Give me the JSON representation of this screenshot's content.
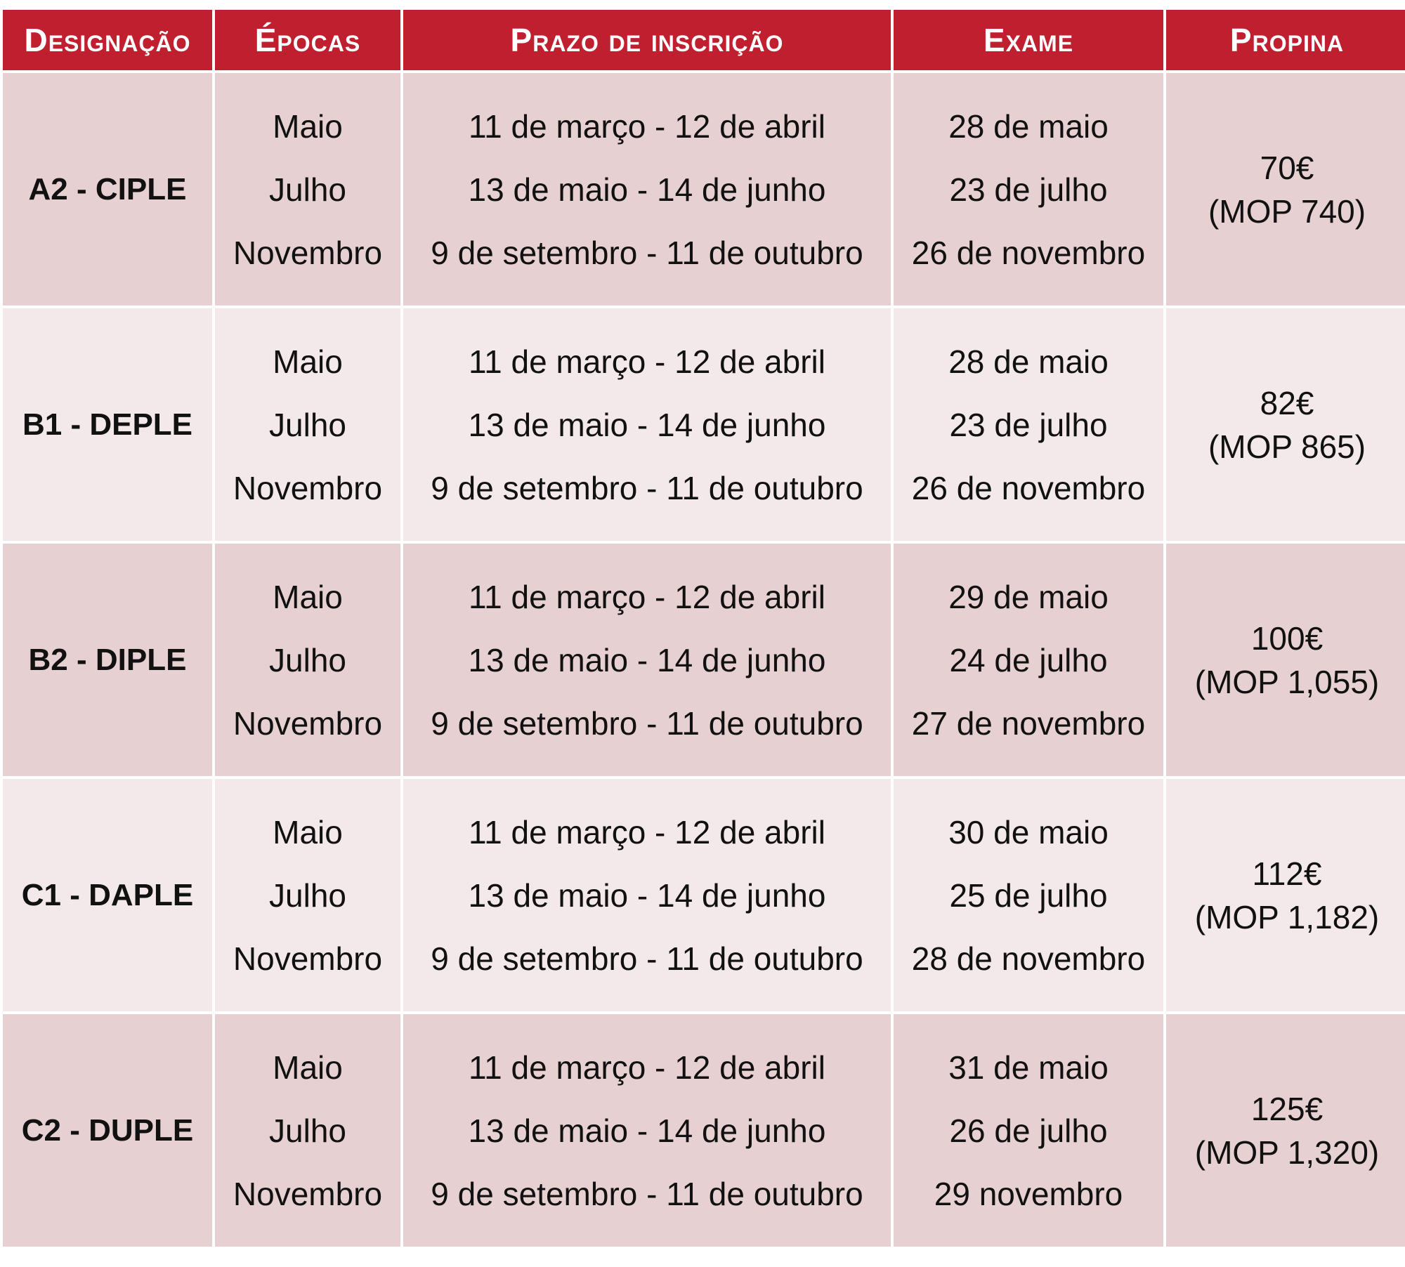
{
  "headers": {
    "designacao": "Designação",
    "epocas": "Épocas",
    "prazo": "Prazo de inscrição",
    "exame": "Exame",
    "propina": "Propina"
  },
  "rows": [
    {
      "designation": "A2 - CIPLE",
      "epocas": [
        "Maio",
        "Julho",
        "Novembro"
      ],
      "prazo": [
        "11 de março - 12 de abril",
        "13 de maio - 14 de junho",
        "9 de setembro - 11 de outubro"
      ],
      "exame": [
        "28 de maio",
        "23 de julho",
        "26 de novembro"
      ],
      "propina": "70€",
      "propina_mop": "(MOP 740)"
    },
    {
      "designation": "B1 - DEPLE",
      "epocas": [
        "Maio",
        "Julho",
        "Novembro"
      ],
      "prazo": [
        "11 de março - 12 de abril",
        "13 de maio - 14 de junho",
        "9 de setembro - 11 de outubro"
      ],
      "exame": [
        "28 de maio",
        "23 de julho",
        "26 de novembro"
      ],
      "propina": "82€",
      "propina_mop": "(MOP 865)"
    },
    {
      "designation": "B2 - DIPLE",
      "epocas": [
        "Maio",
        "Julho",
        "Novembro"
      ],
      "prazo": [
        "11 de março - 12 de abril",
        "13 de maio - 14 de junho",
        "9 de setembro - 11 de outubro"
      ],
      "exame": [
        "29 de maio",
        "24 de julho",
        "27 de novembro"
      ],
      "propina": "100€",
      "propina_mop": "(MOP 1,055)"
    },
    {
      "designation": "C1 - DAPLE",
      "epocas": [
        "Maio",
        "Julho",
        "Novembro"
      ],
      "prazo": [
        "11 de março - 12 de abril",
        "13 de maio - 14 de junho",
        "9 de setembro - 11 de outubro"
      ],
      "exame": [
        "30 de maio",
        "25 de julho",
        "28 de novembro"
      ],
      "propina": "112€",
      "propina_mop": "(MOP 1,182)"
    },
    {
      "designation": "C2 - DUPLE",
      "epocas": [
        "Maio",
        "Julho",
        "Novembro"
      ],
      "prazo": [
        "11 de março - 12 de abril",
        "13 de maio - 14 de junho",
        "9 de setembro - 11 de outubro"
      ],
      "exame": [
        "31 de maio",
        "26 de julho",
        "29 novembro"
      ],
      "propina": "125€",
      "propina_mop": "(MOP 1,320)"
    }
  ],
  "colors": {
    "header_bg": "#c01f2f",
    "row_dark": "#e7d0d1",
    "row_light": "#f4e9ea"
  }
}
